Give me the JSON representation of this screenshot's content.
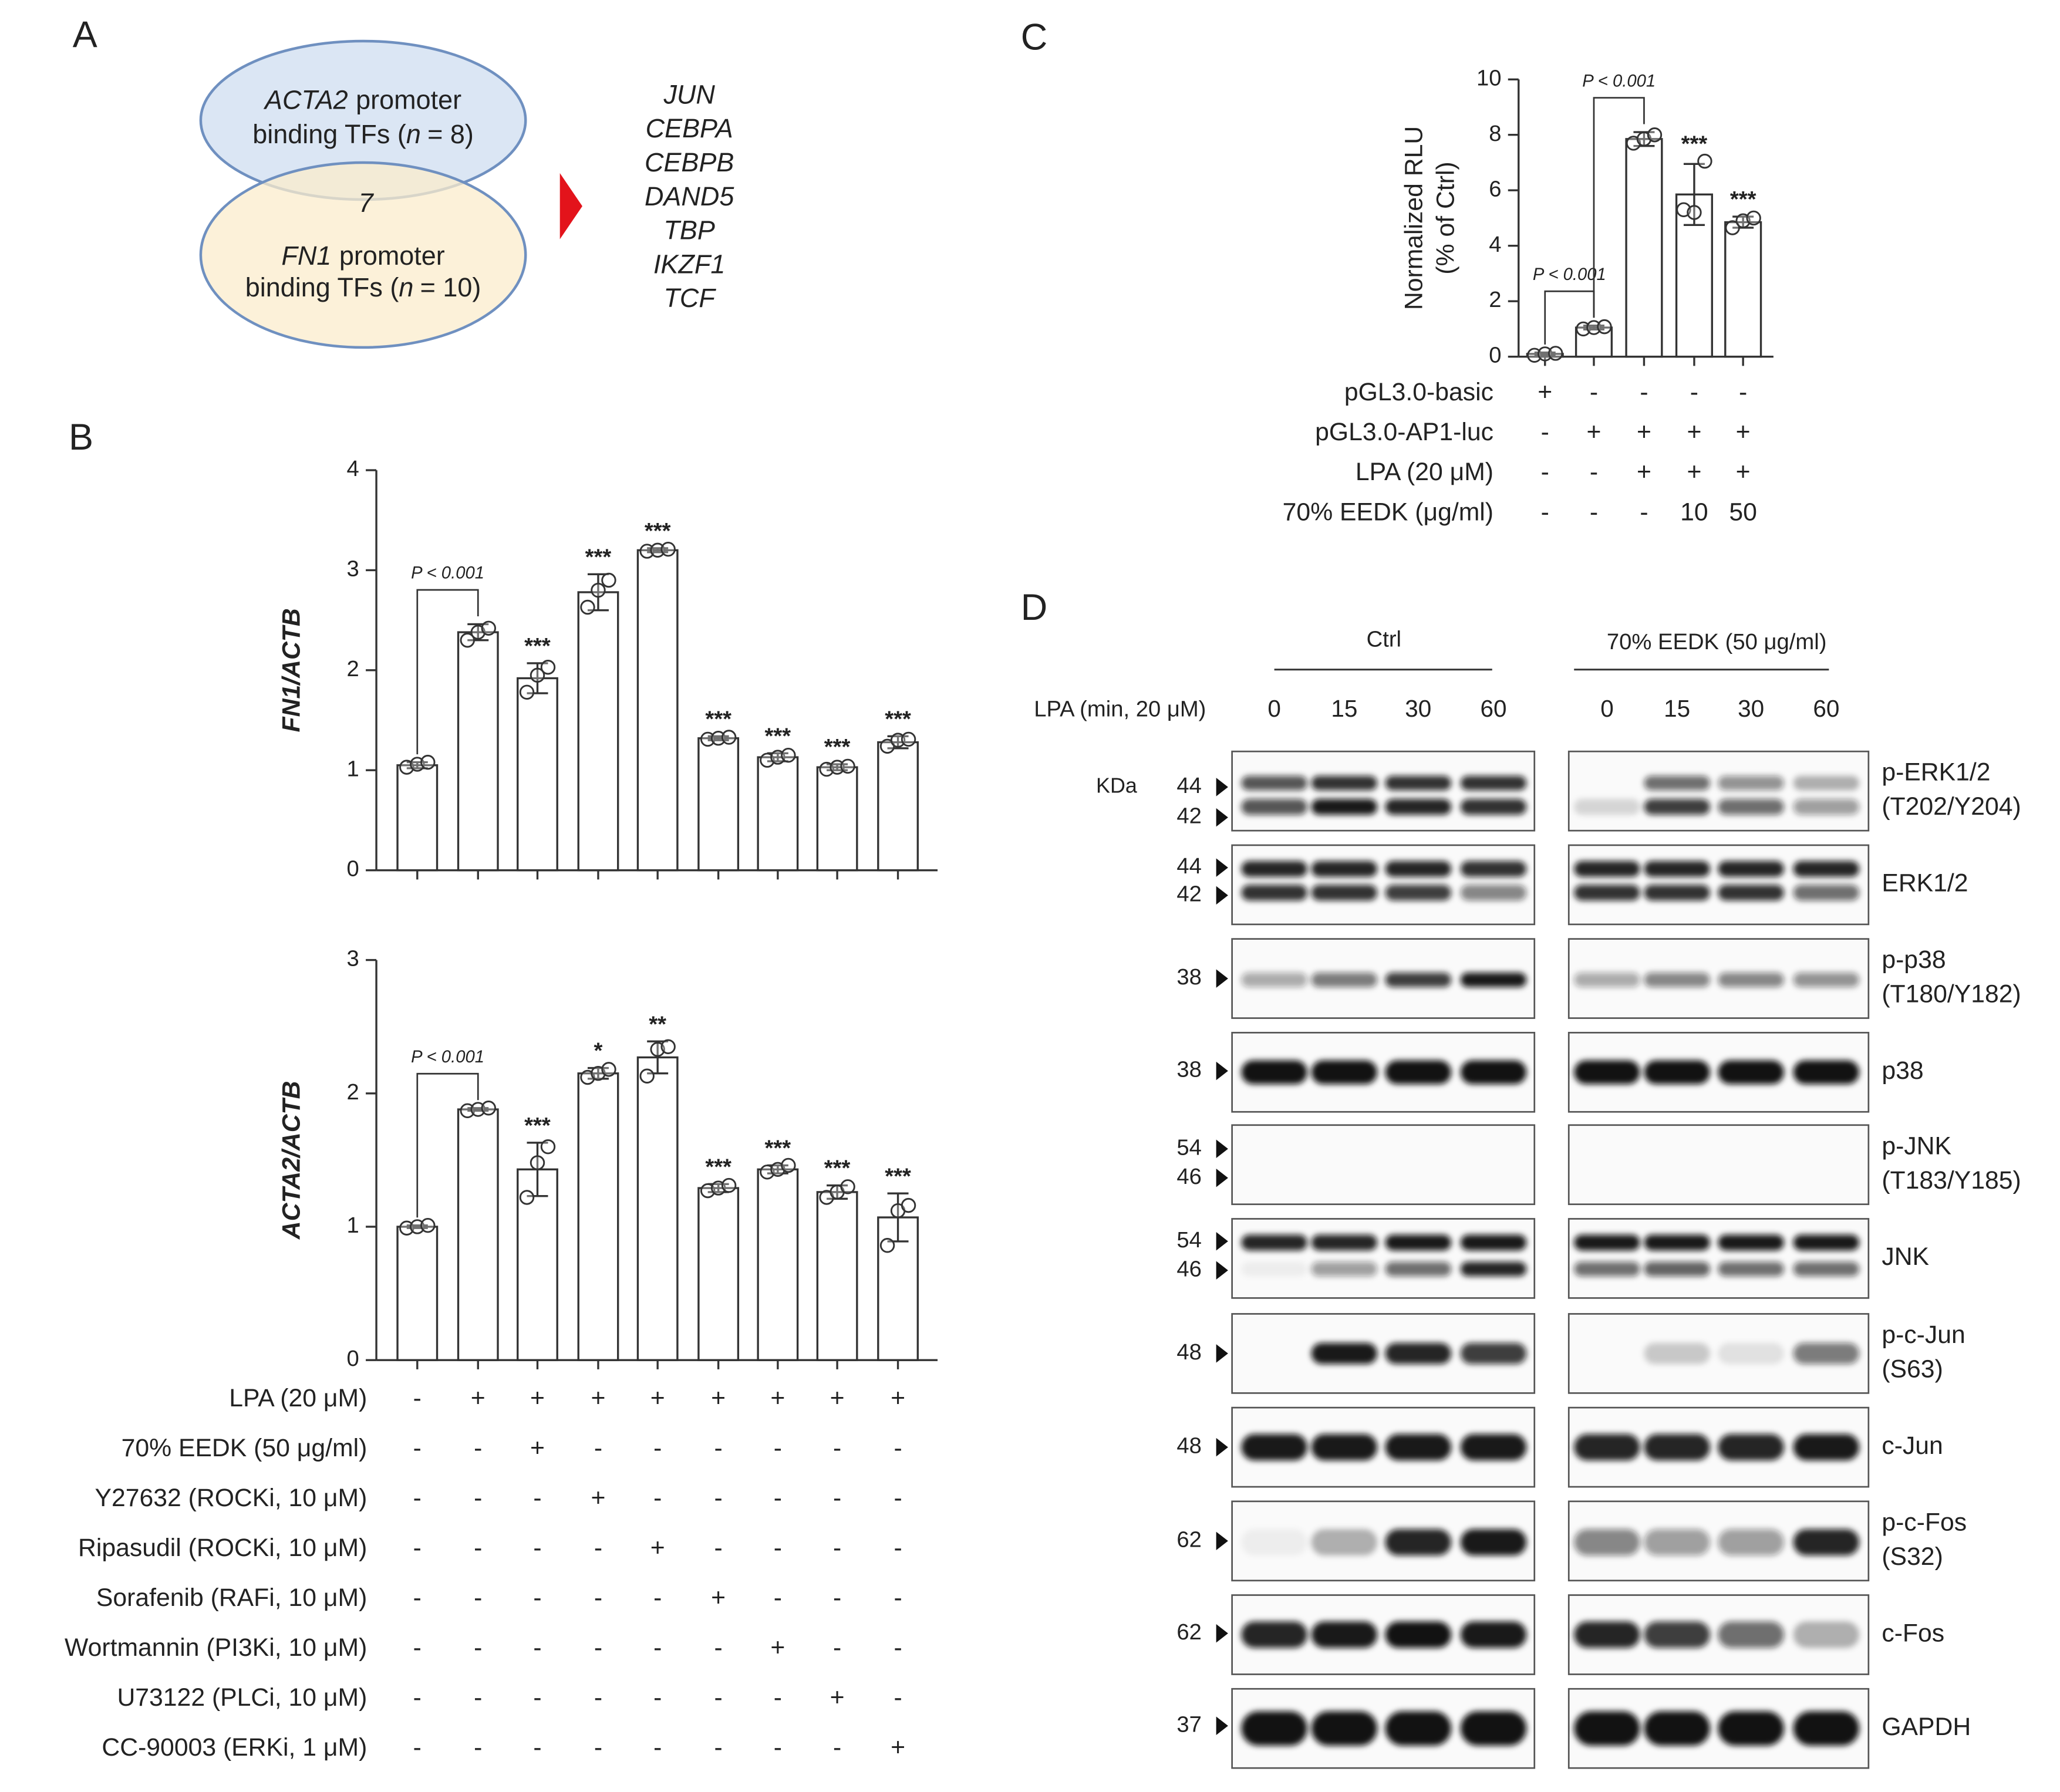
{
  "panels": [
    "A",
    "B",
    "C",
    "D"
  ],
  "venn": {
    "sets": [
      {
        "gene": "ACTA2",
        "suffix": "promoter",
        "line2": [
          "binding TFs (",
          "n",
          "= 8)"
        ]
      },
      {
        "gene": "FN1",
        "suffix": "promoter",
        "line2": [
          "binding TFs (",
          "n",
          "= 10)"
        ]
      }
    ],
    "overlap": 7,
    "genes": [
      "JUN",
      "CEBPA",
      "CEBPB",
      "DAND5",
      "TBP",
      "IKZF1",
      "TCF"
    ]
  },
  "chart_data": [
    {
      "type": "bar",
      "y_label": "FN1/ACTB",
      "ylim": [
        0,
        4
      ],
      "yticks": [
        0,
        1,
        2,
        3,
        4
      ],
      "color": "#ffffff",
      "values": [
        1.05,
        2.38,
        1.92,
        2.78,
        3.2,
        1.32,
        1.13,
        1.03,
        1.28
      ],
      "errors": [
        0.03,
        0.08,
        0.15,
        0.18,
        0.02,
        0.02,
        0.04,
        0.03,
        0.06
      ],
      "points": [
        [
          1.03,
          1.06,
          1.08
        ],
        [
          2.3,
          2.38,
          2.42
        ],
        [
          1.78,
          1.95,
          2.03
        ],
        [
          2.63,
          2.8,
          2.9
        ],
        [
          3.19,
          3.2,
          3.21
        ],
        [
          1.31,
          1.32,
          1.33
        ],
        [
          1.1,
          1.13,
          1.15
        ],
        [
          1.01,
          1.03,
          1.04
        ],
        [
          1.24,
          1.3,
          1.31
        ]
      ],
      "annotations": [
        null,
        null,
        "***",
        "***",
        "***",
        "***",
        "***",
        "***",
        "***"
      ],
      "p_annotations": [
        "P < 0.001"
      ]
    },
    {
      "type": "bar",
      "y_label": "ACTA2/ACTB",
      "ylim": [
        0,
        3
      ],
      "yticks": [
        0,
        1,
        2,
        3
      ],
      "color": "#ffffff",
      "values": [
        1.0,
        1.88,
        1.43,
        2.15,
        2.27,
        1.29,
        1.43,
        1.26,
        1.07
      ],
      "errors": [
        0.01,
        0.01,
        0.2,
        0.04,
        0.12,
        0.03,
        0.03,
        0.05,
        0.18
      ],
      "points": [
        [
          0.99,
          1.0,
          1.01
        ],
        [
          1.87,
          1.88,
          1.89
        ],
        [
          1.22,
          1.48,
          1.6
        ],
        [
          2.12,
          2.15,
          2.18
        ],
        [
          2.13,
          2.33,
          2.35
        ],
        [
          1.27,
          1.29,
          1.31
        ],
        [
          1.41,
          1.43,
          1.46
        ],
        [
          1.22,
          1.26,
          1.3
        ],
        [
          0.86,
          1.12,
          1.16
        ]
      ],
      "annotations": [
        null,
        null,
        "***",
        "*",
        "**",
        "***",
        "***",
        "***",
        "***"
      ],
      "p_annotations": [
        "P < 0.001"
      ]
    },
    {
      "type": "bar",
      "y_label": [
        "Normalized RLU",
        "(% of Ctrl)"
      ],
      "ylim": [
        0,
        10
      ],
      "yticks": [
        0,
        2,
        4,
        6,
        8,
        10
      ],
      "color": "#ffffff",
      "values": [
        0.1,
        1.05,
        7.85,
        5.85,
        4.85
      ],
      "errors": [
        0.05,
        0.07,
        0.25,
        1.1,
        0.2
      ],
      "points": [
        [
          0.05,
          0.1,
          0.12
        ],
        [
          1.0,
          1.05,
          1.08
        ],
        [
          7.7,
          7.85,
          8.0
        ],
        [
          5.3,
          5.2,
          7.05
        ],
        [
          4.65,
          4.9,
          5.0
        ]
      ],
      "annotations": [
        null,
        null,
        null,
        "***",
        "***"
      ],
      "p_annotations": [
        "P < 0.001",
        "P < 0.001"
      ]
    }
  ],
  "treatment_table_B": [
    {
      "label": "LPA (20 μM)",
      "signs": [
        "-",
        "+",
        "+",
        "+",
        "+",
        "+",
        "+",
        "+",
        "+"
      ]
    },
    {
      "label": "70% EEDK (50 μg/ml)",
      "signs": [
        "-",
        "-",
        "+",
        "-",
        "-",
        "-",
        "-",
        "-",
        "-"
      ]
    },
    {
      "label": "Y27632 (ROCKi, 10 μM)",
      "signs": [
        "-",
        "-",
        "-",
        "+",
        "-",
        "-",
        "-",
        "-",
        "-"
      ]
    },
    {
      "label": "Ripasudil (ROCKi, 10 μM)",
      "signs": [
        "-",
        "-",
        "-",
        "-",
        "+",
        "-",
        "-",
        "-",
        "-"
      ]
    },
    {
      "label": "Sorafenib (RAFi, 10 μM)",
      "signs": [
        "-",
        "-",
        "-",
        "-",
        "-",
        "+",
        "-",
        "-",
        "-"
      ]
    },
    {
      "label": "Wortmannin (PI3Ki, 10 μM)",
      "signs": [
        "-",
        "-",
        "-",
        "-",
        "-",
        "-",
        "+",
        "-",
        "-"
      ]
    },
    {
      "label": "U73122 (PLCi, 10 μM)",
      "signs": [
        "-",
        "-",
        "-",
        "-",
        "-",
        "-",
        "-",
        "+",
        "-"
      ]
    },
    {
      "label": "CC-90003 (ERKi, 1 μM)",
      "signs": [
        "-",
        "-",
        "-",
        "-",
        "-",
        "-",
        "-",
        "-",
        "+"
      ]
    }
  ],
  "treatment_table_C": [
    {
      "label": "pGL3.0-basic",
      "signs": [
        "+",
        "-",
        "-",
        "-",
        "-"
      ]
    },
    {
      "label": "pGL3.0-AP1-luc",
      "signs": [
        "-",
        "+",
        "+",
        "+",
        "+"
      ]
    },
    {
      "label": "LPA (20 μM)",
      "signs": [
        "-",
        "-",
        "+",
        "+",
        "+"
      ]
    },
    {
      "label": "70% EEDK (μg/ml)",
      "signs": [
        "-",
        "-",
        "-",
        "10",
        "50"
      ]
    }
  ],
  "western_blot": {
    "groups": [
      "Ctrl",
      "70% EEDK (50 μg/ml)"
    ],
    "lpa_label": "LPA (min, 20 μM)",
    "time_points": [
      "0",
      "15",
      "30",
      "60"
    ],
    "kda_label": "KDa",
    "rows": [
      {
        "name": [
          "p-ERK1/2",
          "(T202/Y204)"
        ],
        "markers": [
          44,
          42
        ]
      },
      {
        "name": [
          "ERK1/2"
        ],
        "markers": [
          44,
          42
        ]
      },
      {
        "name": [
          "p-p38",
          "(T180/Y182)"
        ],
        "markers": [
          38
        ]
      },
      {
        "name": [
          "p38"
        ],
        "markers": [
          38
        ]
      },
      {
        "name": [
          "p-JNK",
          "(T183/Y185)"
        ],
        "markers": [
          54,
          46
        ]
      },
      {
        "name": [
          "JNK"
        ],
        "markers": [
          54,
          46
        ]
      },
      {
        "name": [
          "p-c-Jun",
          "(S63)"
        ],
        "markers": [
          48
        ]
      },
      {
        "name": [
          "c-Jun"
        ],
        "markers": [
          48
        ]
      },
      {
        "name": [
          "p-c-Fos",
          "(S32)"
        ],
        "markers": [
          62
        ]
      },
      {
        "name": [
          "c-Fos"
        ],
        "markers": [
          62
        ]
      },
      {
        "name": [
          "GAPDH"
        ],
        "markers": [
          37
        ]
      }
    ]
  }
}
